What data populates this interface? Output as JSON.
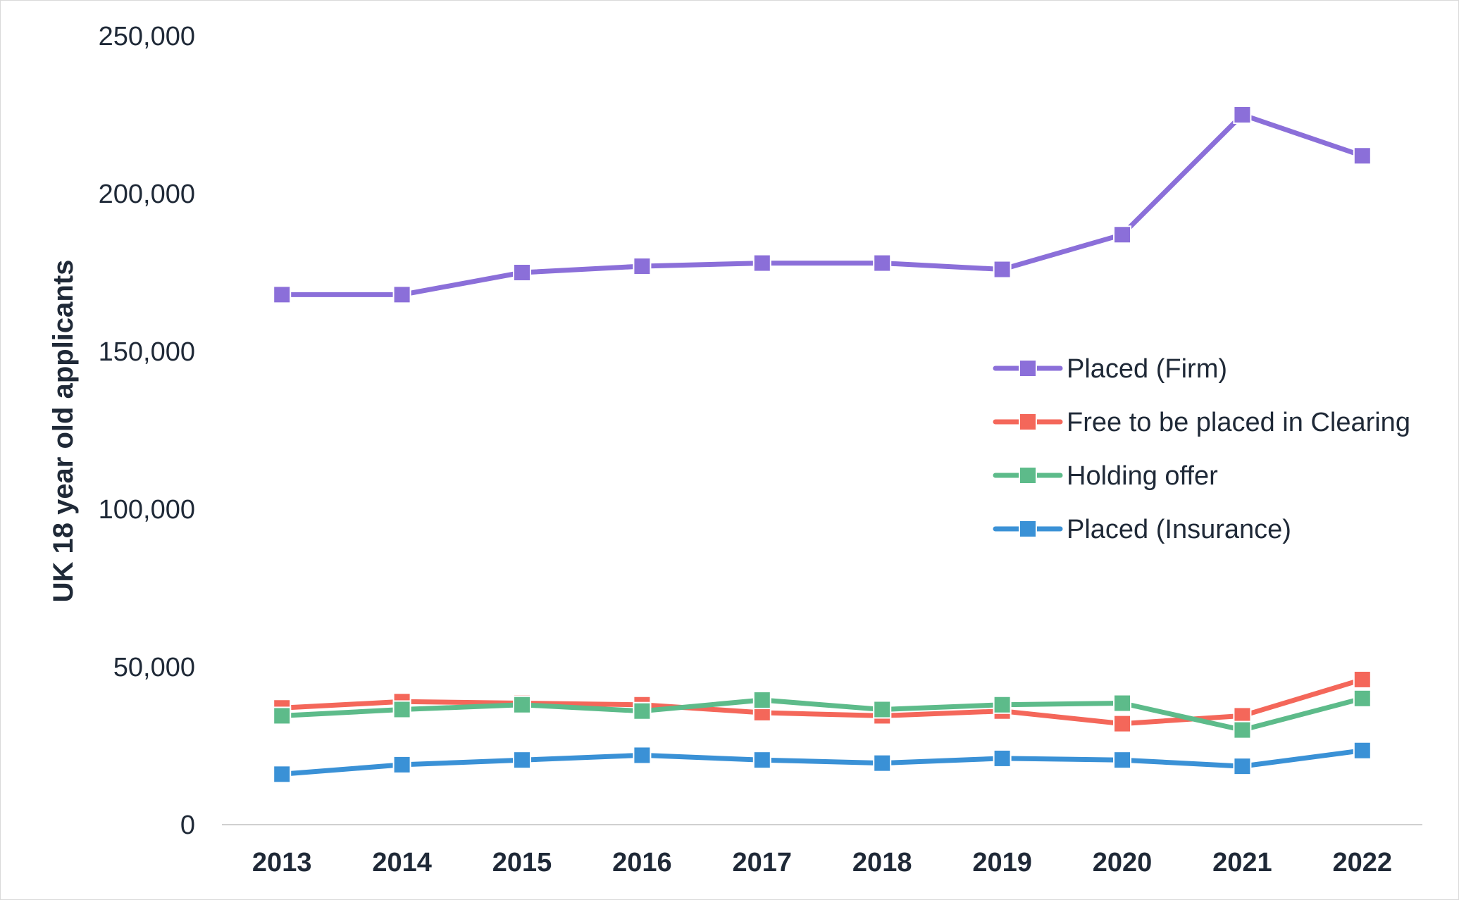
{
  "chart_data": {
    "type": "line",
    "title": "",
    "xlabel": "",
    "ylabel": "UK 18 year old applicants",
    "categories": [
      "2013",
      "2014",
      "2015",
      "2016",
      "2017",
      "2018",
      "2019",
      "2020",
      "2021",
      "2022"
    ],
    "ylim": [
      0,
      250000
    ],
    "y_ticks": [
      0,
      50000,
      100000,
      150000,
      200000,
      250000
    ],
    "y_tick_labels": [
      "0",
      "50,000",
      "100,000",
      "150,000",
      "200,000",
      "250,000"
    ],
    "grid": false,
    "legend_position": "right",
    "series": [
      {
        "name": "Placed (Firm)",
        "color": "#8b6fd9",
        "values": [
          168000,
          168000,
          175000,
          177000,
          178000,
          178000,
          176000,
          187000,
          225000,
          212000
        ]
      },
      {
        "name": "Free to be placed in Clearing",
        "color": "#f4675a",
        "values": [
          37000,
          39000,
          38500,
          38000,
          35500,
          34500,
          36000,
          32000,
          34500,
          46000
        ]
      },
      {
        "name": "Holding offer",
        "color": "#5dbb8a",
        "values": [
          34500,
          36500,
          38000,
          36000,
          39500,
          36500,
          38000,
          38500,
          30000,
          40000
        ]
      },
      {
        "name": "Placed (Insurance)",
        "color": "#3a91d6",
        "values": [
          16000,
          19000,
          20500,
          22000,
          20500,
          19500,
          21000,
          20500,
          18500,
          23500
        ]
      }
    ]
  }
}
